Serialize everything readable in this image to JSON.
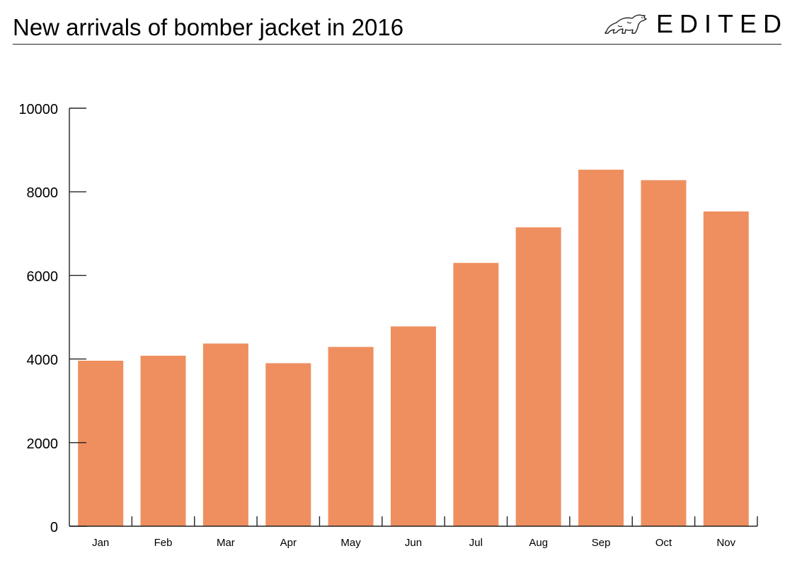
{
  "header": {
    "title": "New arrivals of bomber jacket in 2016",
    "brand": "EDITED",
    "brand_logo_icon": "polar-bear-icon"
  },
  "colors": {
    "bar": "#ef8f5f",
    "axis": "#222222"
  },
  "chart_data": {
    "type": "bar",
    "title": "New arrivals of bomber jacket in 2016",
    "xlabel": "",
    "ylabel": "",
    "categories": [
      "Jan",
      "Feb",
      "Mar",
      "Apr",
      "May",
      "Jun",
      "Jul",
      "Aug",
      "Sep",
      "Oct",
      "Nov"
    ],
    "values": [
      3960,
      4080,
      4370,
      3900,
      4290,
      4780,
      6300,
      7150,
      8530,
      8280,
      7530
    ],
    "ylim": [
      0,
      10000
    ],
    "yticks": [
      0,
      2000,
      4000,
      6000,
      8000,
      10000
    ],
    "grid": false,
    "legend": "none"
  }
}
